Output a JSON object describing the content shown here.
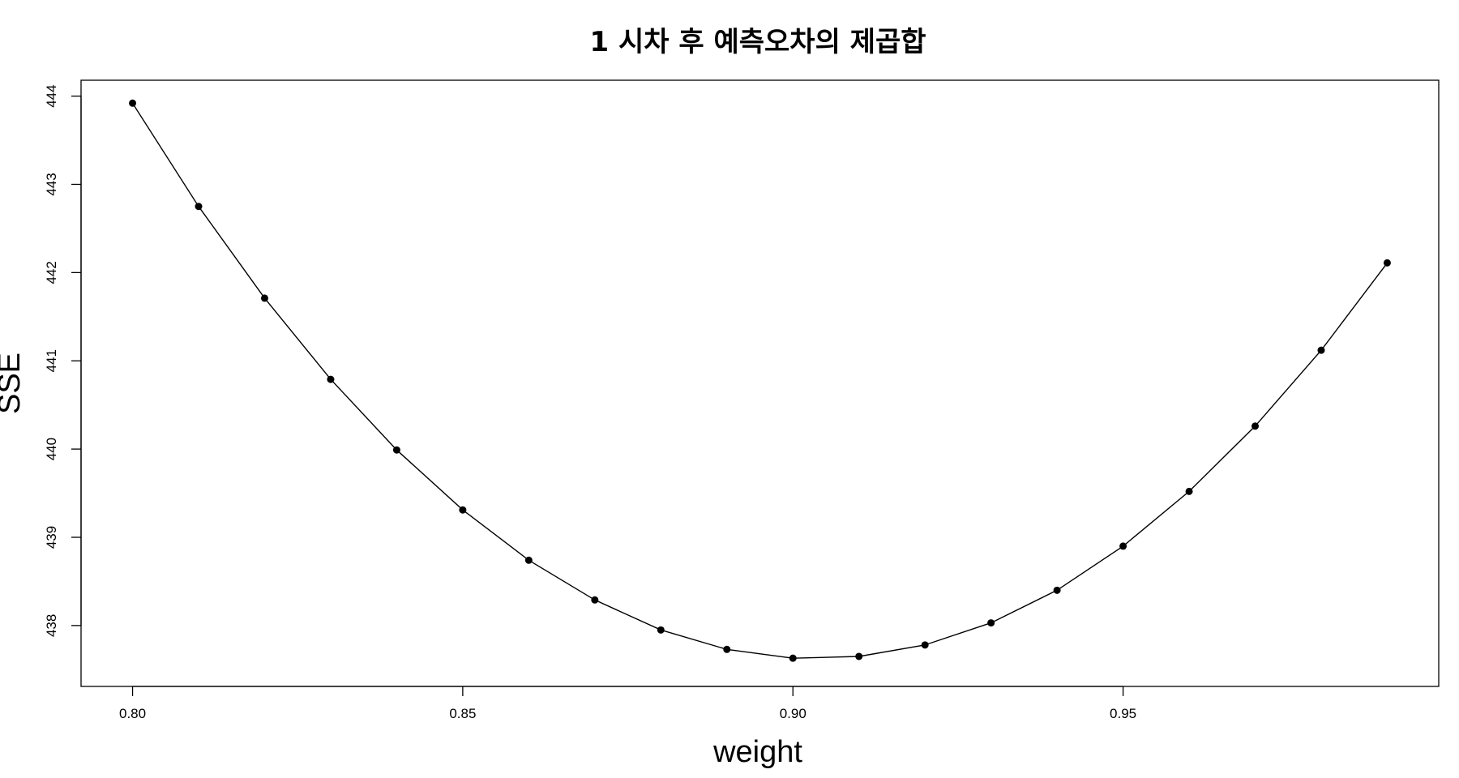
{
  "chart_data": {
    "type": "line",
    "title": "1 시차 후 예측오차의 제곱합",
    "xlabel": "weight",
    "ylabel": "SSE",
    "xlim": [
      0.7922,
      0.9978
    ],
    "ylim": [
      437.31,
      444.18
    ],
    "x_ticks": [
      "0.80",
      "0.85",
      "0.90",
      "0.95"
    ],
    "y_ticks": [
      "438",
      "439",
      "440",
      "441",
      "442",
      "443",
      "444"
    ],
    "grid": false,
    "markers": "filled-circle",
    "series": [
      {
        "x": [
          0.8,
          0.81,
          0.82,
          0.83,
          0.84,
          0.85,
          0.86,
          0.87,
          0.88,
          0.89,
          0.9,
          0.91,
          0.92,
          0.93,
          0.94,
          0.95,
          0.96,
          0.97,
          0.98,
          0.99
        ],
        "values": [
          443.92,
          442.75,
          441.71,
          440.79,
          439.99,
          439.31,
          438.74,
          438.29,
          437.95,
          437.73,
          437.63,
          437.65,
          437.78,
          438.03,
          438.4,
          438.9,
          439.52,
          440.26,
          441.12,
          442.11
        ]
      }
    ]
  }
}
